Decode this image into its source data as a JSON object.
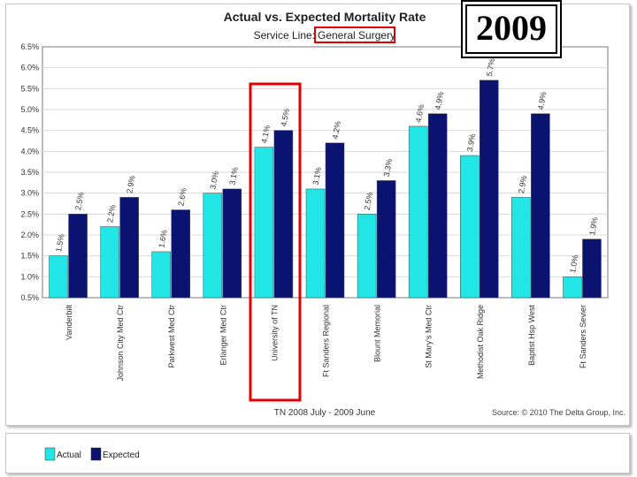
{
  "chart_data": {
    "type": "bar",
    "title": "Actual vs. Expected Mortality Rate",
    "subtitle_prefix": "Service Line:",
    "subtitle_value": "General Surgery",
    "categories": [
      "Vanderbilt",
      "Johnson City Med Ctr",
      "Parkwest Med Ctr",
      "Erlanger Med Ctr",
      "University of TN",
      "Ft Sanders Regional",
      "Blount Memorial",
      "St Mary's Med Ctr",
      "Methodist Oak Ridge",
      "Baptist Hsp West",
      "Ft Sanders Sevier"
    ],
    "series": [
      {
        "name": "Actual",
        "color": "#22e6e6",
        "values": [
          1.5,
          2.2,
          1.6,
          3.0,
          4.1,
          3.1,
          2.5,
          4.6,
          3.9,
          2.9,
          1.0
        ],
        "labels": [
          "1.5%",
          "2.2%",
          "1.6%",
          "3.0%",
          "4.1%",
          "3.1%",
          "2.5%",
          "4.6%",
          "3.9%",
          "2.9%",
          "1.0%"
        ]
      },
      {
        "name": "Expected",
        "color": "#0b1370",
        "values": [
          2.5,
          2.9,
          2.6,
          3.1,
          4.5,
          4.2,
          3.3,
          4.9,
          5.7,
          4.9,
          1.9
        ],
        "labels": [
          "2.5%",
          "2.9%",
          "2.6%",
          "3.1%",
          "4.5%",
          "4.2%",
          "3.3%",
          "4.9%",
          "5.7%",
          "4.9%",
          "1.9%"
        ]
      }
    ],
    "ylim": [
      0.5,
      6.5
    ],
    "yticks": [
      "0.5%",
      "1.0%",
      "1.5%",
      "2.0%",
      "2.5%",
      "3.0%",
      "3.5%",
      "4.0%",
      "4.5%",
      "5.0%",
      "5.5%",
      "6.0%",
      "6.5%"
    ],
    "xlabel": "TN 2008 July - 2009 June",
    "source": "Source: © 2010 The Delta Group, Inc.",
    "highlighted_category": "University of TN"
  },
  "year_label": "2009",
  "accent_color": "#e00000"
}
